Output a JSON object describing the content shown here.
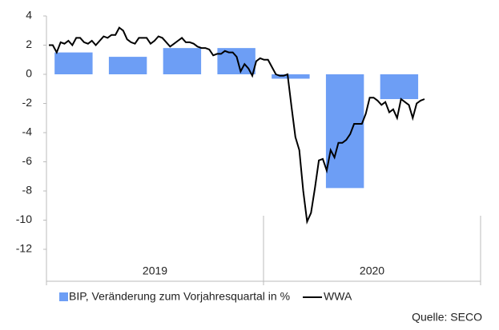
{
  "chart_data": {
    "type": "bar_line",
    "groups": [
      "2019",
      "2020"
    ],
    "periods_per_group": 4,
    "ylim": [
      -14,
      4
    ],
    "yticks": [
      -12,
      -10,
      -8,
      -6,
      -4,
      -2,
      0,
      2,
      4
    ],
    "series": [
      {
        "name": "BIP, Veränderung zum Vorjahresquartal in %",
        "type": "bar",
        "color": "#6d9ef5",
        "values": [
          1.5,
          1.2,
          1.8,
          1.8,
          -0.3,
          -7.8,
          -1.7,
          null
        ]
      },
      {
        "name": "WWA",
        "type": "line",
        "color": "#000000",
        "values": [
          2.0,
          2.0,
          1.5,
          2.2,
          2.1,
          2.3,
          2.0,
          2.5,
          2.5,
          2.2,
          2.1,
          2.3,
          2.0,
          2.3,
          2.6,
          2.5,
          2.7,
          2.7,
          3.2,
          3.0,
          2.4,
          2.2,
          2.1,
          2.5,
          2.5,
          2.5,
          2.1,
          2.3,
          2.6,
          2.5,
          2.2,
          1.9,
          2.1,
          2.3,
          2.5,
          2.2,
          2.2,
          2.1,
          1.9,
          1.8,
          1.8,
          1.7,
          1.3,
          1.4,
          1.4,
          1.6,
          1.5,
          1.5,
          1.2,
          0.2,
          0.7,
          0.4,
          -0.1,
          0.9,
          1.1,
          1.0,
          1.0,
          0.5,
          0.0,
          -0.1,
          -0.1,
          0.0,
          -2.2,
          -4.3,
          -5.2,
          -8.0,
          -10.1,
          -9.5,
          -7.8,
          -5.9,
          -5.8,
          -6.6,
          -5.2,
          -5.7,
          -4.7,
          -4.7,
          -4.5,
          -4.1,
          -3.4,
          -3.4,
          -3.4,
          -2.7,
          -1.6,
          -1.6,
          -1.8,
          -2.1,
          -1.9,
          -2.6,
          -2.4,
          -3.0,
          -1.7,
          -1.9,
          -2.1,
          -3.0,
          -2.0,
          -1.8,
          -1.7
        ]
      }
    ],
    "source": "Quelle: SECO"
  }
}
